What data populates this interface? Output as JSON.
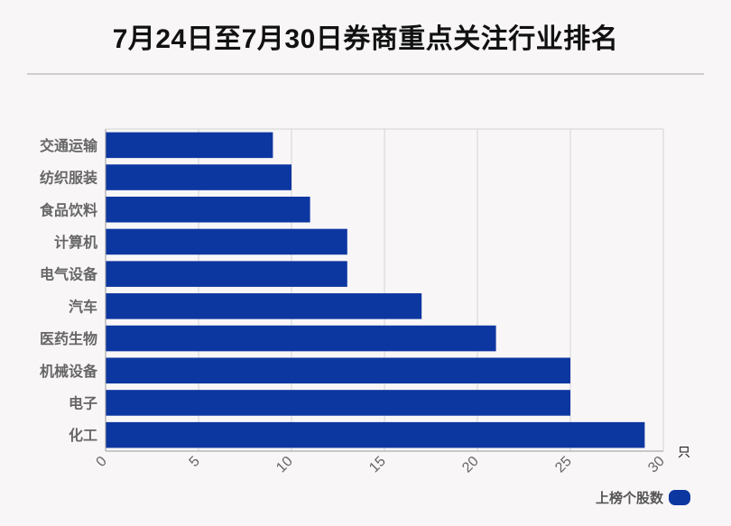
{
  "title": "7月24日至7月30日券商重点关注行业排名",
  "chart_data": {
    "type": "bar",
    "orientation": "horizontal",
    "categories": [
      "交通运输",
      "纺织服装",
      "食品饮料",
      "计算机",
      "电气设备",
      "汽车",
      "医药生物",
      "机械设备",
      "电子",
      "化工"
    ],
    "series": [
      {
        "name": "上榜个股数",
        "values": [
          9,
          10,
          11,
          13,
          13,
          17,
          21,
          25,
          25,
          29
        ]
      }
    ],
    "xlim": [
      0,
      30
    ],
    "xticks": [
      "0",
      "5",
      "10",
      "15",
      "20",
      "25",
      "30"
    ],
    "xunit": "只",
    "grid": true,
    "legend_position": "bottom-right",
    "bar_color": "#0d37a0"
  }
}
